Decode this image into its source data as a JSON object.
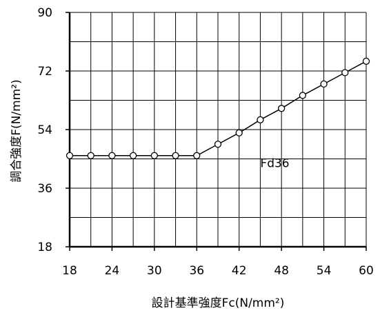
{
  "chart_data": {
    "type": "line",
    "title": "",
    "xlabel": "設計基準強度Fc(N/mm²)",
    "ylabel": "調合強度F(N/mm²)",
    "xlim": [
      18,
      60
    ],
    "ylim": [
      18,
      90
    ],
    "x_ticks": [
      18,
      24,
      30,
      36,
      42,
      48,
      54,
      60
    ],
    "y_ticks": [
      18,
      36,
      54,
      72,
      90
    ],
    "grid": true,
    "x_minor_grid_step": 3,
    "y_minor_grid_step": 9,
    "series": [
      {
        "x": [
          18,
          21,
          24,
          27,
          30,
          33,
          36,
          39,
          42,
          45,
          48,
          51,
          54,
          57,
          60
        ],
        "y": [
          46,
          46,
          46,
          46,
          46,
          46,
          46,
          49.5,
          53,
          57,
          60.5,
          64.5,
          68,
          71.5,
          75
        ],
        "marker": "open-circle",
        "color": "#000000"
      }
    ],
    "annotations": [
      {
        "text": "Fd36",
        "x": 45,
        "y": 42.5
      }
    ]
  }
}
